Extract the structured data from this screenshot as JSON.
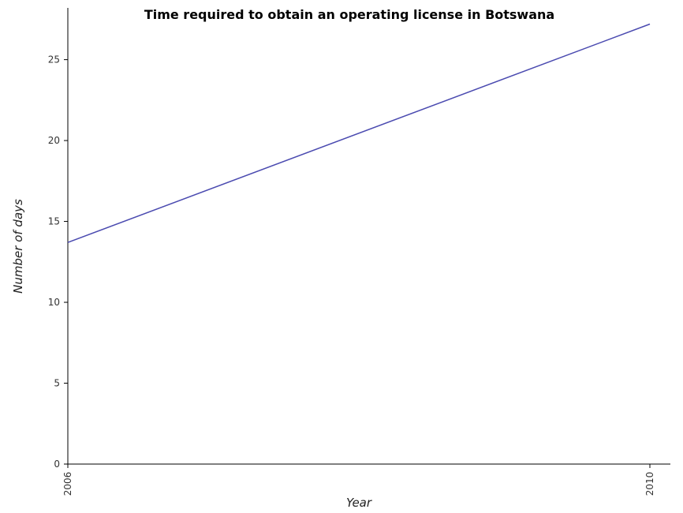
{
  "chart_data": {
    "type": "line",
    "title": "Time required to obtain an operating license in Botswana",
    "xlabel": "Year",
    "ylabel": "Number of days",
    "categories": [
      "2006",
      "2010"
    ],
    "series": [
      {
        "values": [
          13.7,
          27.2
        ],
        "color": "#4a4ab0"
      }
    ],
    "ylim": [
      0,
      28.2
    ],
    "yticks": [
      0,
      5,
      10,
      15,
      20,
      25
    ],
    "ytick_labels": [
      "0",
      "5",
      "10",
      "15",
      "20",
      "25"
    ],
    "grid": false
  }
}
